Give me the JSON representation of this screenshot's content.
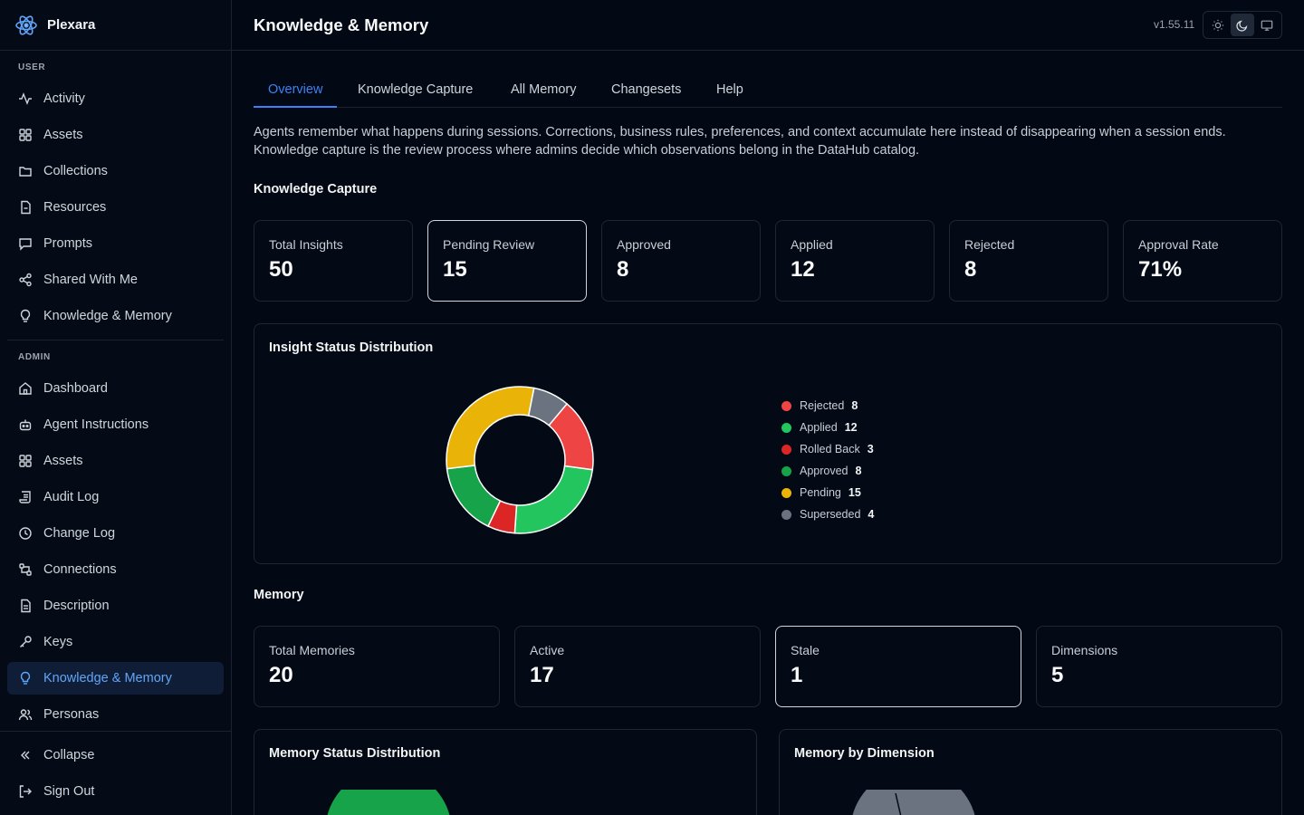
{
  "app": {
    "name": "Plexara",
    "version": "v1.55.11"
  },
  "sidebar": {
    "user_section": "USER",
    "user_items": [
      {
        "label": "Activity",
        "icon": "activity-icon"
      },
      {
        "label": "Assets",
        "icon": "grid-icon"
      },
      {
        "label": "Collections",
        "icon": "folder-icon"
      },
      {
        "label": "Resources",
        "icon": "file-icon"
      },
      {
        "label": "Prompts",
        "icon": "message-icon"
      },
      {
        "label": "Shared With Me",
        "icon": "share-icon"
      },
      {
        "label": "Knowledge & Memory",
        "icon": "lightbulb-icon"
      }
    ],
    "admin_section": "ADMIN",
    "admin_items": [
      {
        "label": "Dashboard",
        "icon": "home-icon"
      },
      {
        "label": "Agent Instructions",
        "icon": "bot-icon"
      },
      {
        "label": "Assets",
        "icon": "grid-icon"
      },
      {
        "label": "Audit Log",
        "icon": "scroll-icon"
      },
      {
        "label": "Change Log",
        "icon": "clock-icon"
      },
      {
        "label": "Connections",
        "icon": "connection-icon"
      },
      {
        "label": "Description",
        "icon": "document-icon"
      },
      {
        "label": "Keys",
        "icon": "key-icon"
      },
      {
        "label": "Knowledge & Memory",
        "icon": "lightbulb-icon",
        "active": true
      },
      {
        "label": "Personas",
        "icon": "users-icon"
      }
    ],
    "collapse_label": "Collapse",
    "signout_label": "Sign Out"
  },
  "header": {
    "title": "Knowledge & Memory"
  },
  "tabs": [
    {
      "label": "Overview",
      "active": true
    },
    {
      "label": "Knowledge Capture"
    },
    {
      "label": "All Memory"
    },
    {
      "label": "Changesets"
    },
    {
      "label": "Help"
    }
  ],
  "intro": {
    "line1": "Agents remember what happens during sessions. Corrections, business rules, preferences, and context accumulate here instead of disappearing when a session ends.",
    "line2": "Knowledge capture is the review process where admins decide which observations belong in the DataHub catalog."
  },
  "knowledge_capture": {
    "title": "Knowledge Capture",
    "stats": [
      {
        "label": "Total Insights",
        "value": "50"
      },
      {
        "label": "Pending Review",
        "value": "15",
        "highlight": true
      },
      {
        "label": "Approved",
        "value": "8"
      },
      {
        "label": "Applied",
        "value": "12"
      },
      {
        "label": "Rejected",
        "value": "8"
      },
      {
        "label": "Approval Rate",
        "value": "71%"
      }
    ]
  },
  "insight_panel": {
    "title": "Insight Status Distribution"
  },
  "chart_data": {
    "type": "pie",
    "donut": true,
    "categories": [
      "Rejected",
      "Applied",
      "Rolled Back",
      "Approved",
      "Pending",
      "Superseded"
    ],
    "values": [
      8,
      12,
      3,
      8,
      15,
      4
    ],
    "colors": [
      "#ef4444",
      "#22c55e",
      "#dc2626",
      "#16a34a",
      "#eab308",
      "#6b7280"
    ],
    "legend": "right"
  },
  "memory": {
    "title": "Memory",
    "stats": [
      {
        "label": "Total Memories",
        "value": "20"
      },
      {
        "label": "Active",
        "value": "17"
      },
      {
        "label": "Stale",
        "value": "1",
        "highlight": true
      },
      {
        "label": "Dimensions",
        "value": "5"
      }
    ]
  },
  "memory_status_panel": {
    "title": "Memory Status Distribution"
  },
  "memory_dimension_panel": {
    "title": "Memory by Dimension"
  },
  "colors": {
    "accent": "#3b82f6",
    "background": "#020814"
  }
}
